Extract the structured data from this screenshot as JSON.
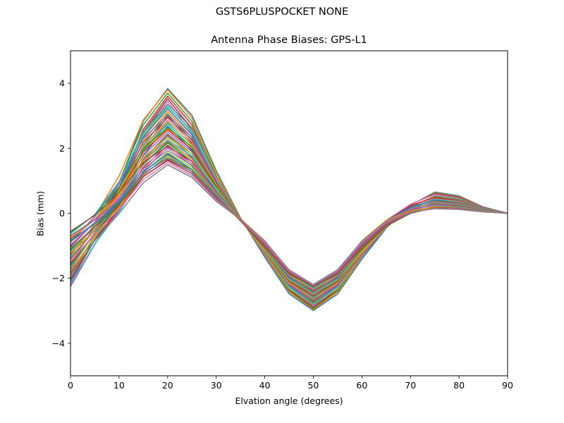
{
  "figure": {
    "suptitle": "GSTS6PLUSPOCKET NONE"
  },
  "chart_data": {
    "type": "line",
    "title": "Antenna Phase Biases: GPS-L1",
    "xlabel": "Elvation angle (degrees)",
    "ylabel": "Bias (mm)",
    "xlim": [
      0,
      90
    ],
    "ylim": [
      -5,
      5
    ],
    "xticks": [
      0,
      10,
      20,
      30,
      40,
      50,
      60,
      70,
      80,
      90
    ],
    "yticks": [
      -4,
      -2,
      0,
      2,
      4
    ],
    "ytick_labels": [
      "−4",
      "−2",
      "0",
      "2",
      "4"
    ],
    "grid": false,
    "legend": "none",
    "x": [
      0,
      5,
      10,
      15,
      20,
      25,
      30,
      35,
      40,
      45,
      50,
      55,
      60,
      65,
      70,
      75,
      80,
      85,
      90
    ],
    "series_count": 48,
    "series_envelope": {
      "description": "48 overlapping azimuth curves; values are bounds of the family",
      "upper_amplitude_peak": 3.97,
      "lower_amplitude_peak": 1.6,
      "y0_range": [
        -2.3,
        -0.6
      ],
      "y50_range": [
        -3.5,
        -1.8
      ],
      "y75_range": [
        -0.25,
        0.72
      ]
    },
    "colors": [
      "#1f77b4",
      "#ff7f0e",
      "#2ca02c",
      "#d62728",
      "#9467bd",
      "#8c564b",
      "#e377c2",
      "#7f7f7f",
      "#bcbd22",
      "#17becf"
    ]
  }
}
